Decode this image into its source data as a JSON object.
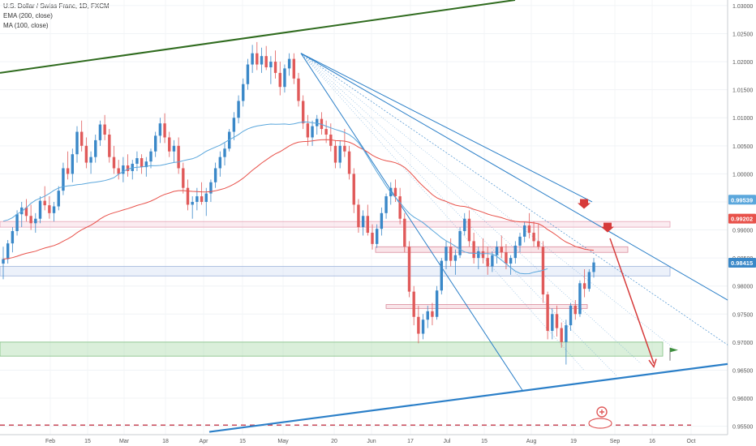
{
  "legend": {
    "symbol": "U.S. Dollar / Swiss Franc, 1D, FXCM",
    "ema": "EMA (200, close)",
    "ma": "MA (100, close)"
  },
  "colors": {
    "up": "#3a88c8",
    "down": "#e05a5a",
    "ema": "#e8514a",
    "ma": "#5ba7dc",
    "trend_green": "#2f6b1e",
    "trend_blue": "#2b7fc8",
    "dashed_red": "#c94b5b",
    "arrow_red": "#d63a3a"
  },
  "chart_data": {
    "type": "candlestick",
    "title": "U.S. Dollar / Swiss Franc, 1D, FXCM",
    "ylim": [
      0.9535,
      1.031
    ],
    "y_ticks": [
      "1.03000",
      "1.02500",
      "1.02000",
      "1.01500",
      "1.01000",
      "1.00500",
      "1.00000",
      "0.99500",
      "0.99000",
      "0.98500",
      "0.98000",
      "0.97500",
      "0.97000",
      "0.96500",
      "0.96000",
      "0.95500"
    ],
    "x_ticks": [
      "Feb",
      "15",
      "Mar",
      "18",
      "Apr",
      "15",
      "May",
      "20",
      "Jun",
      "17",
      "Jul",
      "15",
      "Aug",
      "19",
      "Sep",
      "16",
      "Oct"
    ],
    "grid": true,
    "series": [
      {
        "name": "EMA (200, close)",
        "last": "0.99202"
      },
      {
        "name": "MA (100, close)",
        "last": "0.99539"
      }
    ],
    "price_labels": [
      {
        "value": 0.99539,
        "text": "0.99539",
        "color": "#5ba7dc"
      },
      {
        "value": 0.99202,
        "text": "0.99202",
        "color": "#e8514a"
      },
      {
        "value": 0.98415,
        "text": "0.98415",
        "color": "#3a88c8"
      }
    ],
    "candles": [
      [
        0.984,
        0.987,
        0.9812,
        0.9848
      ],
      [
        0.9848,
        0.9882,
        0.984,
        0.9876
      ],
      [
        0.9876,
        0.9905,
        0.986,
        0.9898
      ],
      [
        0.9898,
        0.9935,
        0.989,
        0.9928
      ],
      [
        0.9928,
        0.995,
        0.9905,
        0.994
      ],
      [
        0.994,
        0.9955,
        0.9915,
        0.9925
      ],
      [
        0.9925,
        0.9945,
        0.99,
        0.9912
      ],
      [
        0.9912,
        0.993,
        0.9895,
        0.992
      ],
      [
        0.992,
        0.996,
        0.9912,
        0.9952
      ],
      [
        0.9952,
        0.9978,
        0.9935,
        0.9944
      ],
      [
        0.9944,
        0.996,
        0.992,
        0.993
      ],
      [
        0.993,
        0.995,
        0.9915,
        0.9942
      ],
      [
        0.9942,
        0.9978,
        0.9935,
        0.997
      ],
      [
        0.997,
        1.002,
        0.9962,
        1.001
      ],
      [
        1.001,
        1.004,
        0.999,
        1.0
      ],
      [
        1.0,
        1.0045,
        0.9985,
        1.0035
      ],
      [
        1.0035,
        1.0085,
        1.002,
        1.0075
      ],
      [
        1.0075,
        1.0095,
        1.004,
        1.005
      ],
      [
        1.005,
        1.0065,
        1.001,
        1.002
      ],
      [
        1.002,
        1.004,
        1.0,
        1.003
      ],
      [
        1.003,
        1.007,
        1.002,
        1.006
      ],
      [
        1.006,
        1.0095,
        1.005,
        1.0088
      ],
      [
        1.0088,
        1.0105,
        1.006,
        1.007
      ],
      [
        1.007,
        1.008,
        1.002,
        1.003
      ],
      [
        1.003,
        1.005,
        1.0,
        1.001
      ],
      [
        1.001,
        1.0025,
        0.999,
        1.0
      ],
      [
        1.0,
        1.003,
        0.9985,
        1.0015
      ],
      [
        1.0015,
        1.0035,
        0.9995,
        1.0005
      ],
      [
        1.0005,
        1.0025,
        0.999,
        1.0018
      ],
      [
        1.0018,
        1.004,
        1.0005,
        1.0028
      ],
      [
        1.0028,
        1.0035,
        1.0,
        1.0012
      ],
      [
        1.0012,
        1.003,
        0.9995,
        1.0022
      ],
      [
        1.0022,
        1.0045,
        1.001,
        1.004
      ],
      [
        1.004,
        1.0075,
        1.003,
        1.0068
      ],
      [
        1.0068,
        1.01,
        1.0055,
        1.009
      ],
      [
        1.009,
        1.0108,
        1.0055,
        1.0065
      ],
      [
        1.0065,
        1.0075,
        1.003,
        1.004
      ],
      [
        1.004,
        1.006,
        1.002,
        1.005
      ],
      [
        1.005,
        1.0065,
        1.0,
        1.001
      ],
      [
        1.001,
        1.002,
        0.9965,
        0.9975
      ],
      [
        0.9975,
        0.999,
        0.9935,
        0.9945
      ],
      [
        0.9945,
        0.996,
        0.992,
        0.995
      ],
      [
        0.995,
        0.9975,
        0.9935,
        0.996
      ],
      [
        0.996,
        0.9985,
        0.9945,
        0.995
      ],
      [
        0.995,
        0.9975,
        0.9925,
        0.9965
      ],
      [
        0.9965,
        0.999,
        0.995,
        0.9985
      ],
      [
        0.9985,
        1.002,
        0.9975,
        1.001
      ],
      [
        1.001,
        1.004,
        0.9995,
        1.003
      ],
      [
        1.003,
        1.0055,
        1.0015,
        1.0045
      ],
      [
        1.0045,
        1.008,
        1.004,
        1.0075
      ],
      [
        1.0075,
        1.011,
        1.006,
        1.01
      ],
      [
        1.01,
        1.014,
        1.009,
        1.013
      ],
      [
        1.013,
        1.017,
        1.012,
        1.016
      ],
      [
        1.016,
        1.0205,
        1.015,
        1.0195
      ],
      [
        1.0195,
        1.023,
        1.018,
        1.0215
      ],
      [
        1.0215,
        1.0235,
        1.0185,
        1.0195
      ],
      [
        1.0195,
        1.0225,
        1.018,
        1.021
      ],
      [
        1.021,
        1.0228,
        1.0185,
        1.019
      ],
      [
        1.019,
        1.021,
        1.016,
        1.02
      ],
      [
        1.02,
        1.022,
        1.017,
        1.018
      ],
      [
        1.018,
        1.02,
        1.014,
        1.0155
      ],
      [
        1.0155,
        1.0195,
        1.0145,
        1.0188
      ],
      [
        1.0188,
        1.0215,
        1.0175,
        1.0205
      ],
      [
        1.0205,
        1.0215,
        1.016,
        1.017
      ],
      [
        1.017,
        1.018,
        1.012,
        1.013
      ],
      [
        1.013,
        1.014,
        1.008,
        1.009
      ],
      [
        1.009,
        1.0105,
        1.005,
        1.0065
      ],
      [
        1.0065,
        1.0095,
        1.005,
        1.0085
      ],
      [
        1.0085,
        1.0105,
        1.007,
        1.0098
      ],
      [
        1.0098,
        1.011,
        1.007,
        1.008
      ],
      [
        1.008,
        1.0095,
        1.0055,
        1.007
      ],
      [
        1.007,
        1.009,
        1.004,
        1.005
      ],
      [
        1.005,
        1.006,
        1.001,
        1.002
      ],
      [
        1.002,
        1.006,
        1.001,
        1.005
      ],
      [
        1.005,
        1.008,
        1.003,
        1.004
      ],
      [
        1.004,
        1.005,
        0.999,
        1.0
      ],
      [
        1.0,
        1.001,
        0.993,
        0.9945
      ],
      [
        0.9945,
        0.9955,
        0.9895,
        0.9905
      ],
      [
        0.9905,
        0.9935,
        0.989,
        0.9925
      ],
      [
        0.9925,
        0.9945,
        0.989,
        0.9895
      ],
      [
        0.9895,
        0.991,
        0.9865,
        0.9875
      ],
      [
        0.9875,
        0.991,
        0.9868,
        0.9902
      ],
      [
        0.9902,
        0.994,
        0.989,
        0.993
      ],
      [
        0.993,
        0.9965,
        0.992,
        0.996
      ],
      [
        0.996,
        0.9985,
        0.9945,
        0.9975
      ],
      [
        0.9975,
        0.999,
        0.995,
        0.996
      ],
      [
        0.996,
        0.9975,
        0.991,
        0.992
      ],
      [
        0.992,
        0.993,
        0.986,
        0.987
      ],
      [
        0.987,
        0.988,
        0.978,
        0.979
      ],
      [
        0.979,
        0.98,
        0.973,
        0.9745
      ],
      [
        0.9745,
        0.9765,
        0.9698,
        0.9715
      ],
      [
        0.9715,
        0.975,
        0.9705,
        0.974
      ],
      [
        0.974,
        0.9765,
        0.9725,
        0.9755
      ],
      [
        0.9755,
        0.977,
        0.973,
        0.9745
      ],
      [
        0.9745,
        0.98,
        0.974,
        0.9792
      ],
      [
        0.9792,
        0.985,
        0.9785,
        0.9845
      ],
      [
        0.9845,
        0.988,
        0.983,
        0.987
      ],
      [
        0.987,
        0.9885,
        0.9835,
        0.9845
      ],
      [
        0.9845,
        0.9865,
        0.982,
        0.9855
      ],
      [
        0.9855,
        0.9905,
        0.985,
        0.9898
      ],
      [
        0.9898,
        0.993,
        0.989,
        0.992
      ],
      [
        0.992,
        0.9935,
        0.987,
        0.988
      ],
      [
        0.988,
        0.9895,
        0.984,
        0.985
      ],
      [
        0.985,
        0.987,
        0.983,
        0.9862
      ],
      [
        0.9862,
        0.9885,
        0.984,
        0.985
      ],
      [
        0.985,
        0.987,
        0.982,
        0.9835
      ],
      [
        0.9835,
        0.9862,
        0.9825,
        0.9855
      ],
      [
        0.9855,
        0.988,
        0.984,
        0.987
      ],
      [
        0.987,
        0.989,
        0.985,
        0.986
      ],
      [
        0.986,
        0.9875,
        0.983,
        0.984
      ],
      [
        0.984,
        0.9855,
        0.982,
        0.985
      ],
      [
        0.985,
        0.988,
        0.984,
        0.9872
      ],
      [
        0.9872,
        0.9895,
        0.986,
        0.9888
      ],
      [
        0.9888,
        0.9915,
        0.9878,
        0.9908
      ],
      [
        0.9908,
        0.993,
        0.9885,
        0.9895
      ],
      [
        0.9895,
        0.9915,
        0.987,
        0.988
      ],
      [
        0.988,
        0.991,
        0.9865,
        0.987
      ],
      [
        0.987,
        0.988,
        0.977,
        0.9785
      ],
      [
        0.9785,
        0.979,
        0.9705,
        0.972
      ],
      [
        0.972,
        0.976,
        0.9705,
        0.975
      ],
      [
        0.975,
        0.9765,
        0.971,
        0.9725
      ],
      [
        0.9725,
        0.9735,
        0.969,
        0.97
      ],
      [
        0.97,
        0.974,
        0.966,
        0.973
      ],
      [
        0.973,
        0.977,
        0.972,
        0.9765
      ],
      [
        0.9765,
        0.9775,
        0.974,
        0.975
      ],
      [
        0.975,
        0.981,
        0.9745,
        0.9805
      ],
      [
        0.9805,
        0.983,
        0.978,
        0.9795
      ],
      [
        0.9795,
        0.983,
        0.979,
        0.9825
      ],
      [
        0.9825,
        0.985,
        0.9815,
        0.9842
      ]
    ]
  }
}
